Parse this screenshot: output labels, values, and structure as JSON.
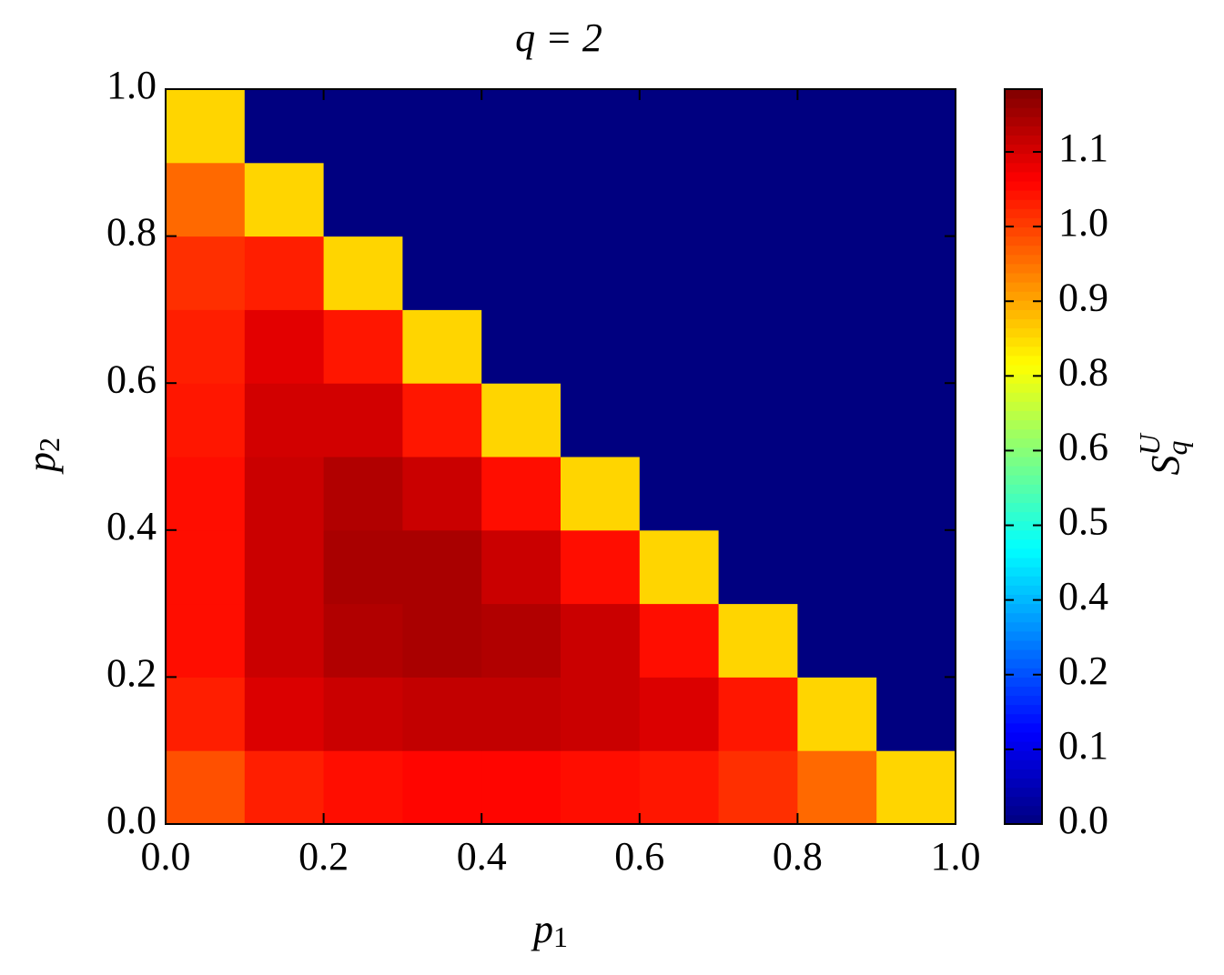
{
  "chart_data": {
    "type": "heatmap",
    "title": "q = 2",
    "xlabel": {
      "base": "p",
      "sub": "1"
    },
    "ylabel": {
      "base": "p",
      "sub": "2"
    },
    "colorbar_label": {
      "base": "S",
      "sub": "q",
      "sup": "U"
    },
    "colormap": "jet",
    "x": [
      0.05,
      0.15,
      0.25,
      0.35,
      0.45,
      0.55,
      0.65,
      0.75,
      0.85,
      0.95
    ],
    "y": [
      0.05,
      0.15,
      0.25,
      0.35,
      0.45,
      0.55,
      0.65,
      0.75,
      0.85,
      0.95
    ],
    "z": [
      [
        0.98,
        1.04,
        1.06,
        1.07,
        1.07,
        1.06,
        1.05,
        1.02,
        0.95,
        0.82
      ],
      [
        1.04,
        1.12,
        1.14,
        1.15,
        1.15,
        1.14,
        1.12,
        1.05,
        0.82,
        0
      ],
      [
        1.06,
        1.14,
        1.17,
        1.18,
        1.17,
        1.14,
        1.06,
        0.82,
        0,
        0
      ],
      [
        1.06,
        1.14,
        1.18,
        1.18,
        1.14,
        1.06,
        0.82,
        0,
        0,
        0
      ],
      [
        1.06,
        1.14,
        1.17,
        1.14,
        1.06,
        0.82,
        0,
        0,
        0,
        0
      ],
      [
        1.05,
        1.13,
        1.13,
        1.05,
        0.82,
        0,
        0,
        0,
        0,
        0
      ],
      [
        1.04,
        1.11,
        1.05,
        0.82,
        0,
        0,
        0,
        0,
        0,
        0
      ],
      [
        1.02,
        1.04,
        0.82,
        0,
        0,
        0,
        0,
        0,
        0,
        0
      ],
      [
        0.95,
        0.82,
        0,
        0,
        0,
        0,
        0,
        0,
        0,
        0
      ],
      [
        0.82,
        0,
        0,
        0,
        0,
        0,
        0,
        0,
        0,
        0
      ]
    ],
    "xlim": [
      0,
      1
    ],
    "ylim": [
      0,
      1
    ],
    "clim": [
      0,
      1.23
    ],
    "xticks": [
      {
        "value": 0,
        "label": "0.0"
      },
      {
        "value": 0.2,
        "label": "0.2"
      },
      {
        "value": 0.4,
        "label": "0.4"
      },
      {
        "value": 0.6,
        "label": "0.6"
      },
      {
        "value": 0.8,
        "label": "0.8"
      },
      {
        "value": 1,
        "label": "1.0"
      }
    ],
    "yticks": [
      {
        "value": 0,
        "label": "0.0"
      },
      {
        "value": 0.2,
        "label": "0.2"
      },
      {
        "value": 0.4,
        "label": "0.4"
      },
      {
        "value": 0.6,
        "label": "0.6"
      },
      {
        "value": 0.8,
        "label": "0.8"
      },
      {
        "value": 1,
        "label": "1.0"
      }
    ],
    "cticks": [
      {
        "value": 0,
        "label": "0.0"
      },
      {
        "value": 0.125,
        "label": "0.1"
      },
      {
        "value": 0.25,
        "label": "0.2"
      },
      {
        "value": 0.375,
        "label": "0.4"
      },
      {
        "value": 0.5,
        "label": "0.5"
      },
      {
        "value": 0.625,
        "label": "0.6"
      },
      {
        "value": 0.75,
        "label": "0.8"
      },
      {
        "value": 0.875,
        "label": "0.9"
      },
      {
        "value": 1,
        "label": "1.0"
      },
      {
        "value": 1.125,
        "label": "1.1"
      }
    ]
  }
}
